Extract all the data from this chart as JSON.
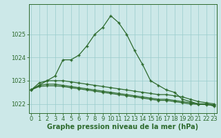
{
  "hours": [
    0,
    1,
    2,
    3,
    4,
    5,
    6,
    7,
    8,
    9,
    10,
    11,
    12,
    13,
    14,
    15,
    16,
    17,
    18,
    19,
    20,
    21,
    22,
    23
  ],
  "line_main": [
    1022.6,
    1022.8,
    1023.0,
    1023.2,
    1023.9,
    1023.9,
    1024.1,
    1024.5,
    1025.0,
    1025.3,
    1025.8,
    1025.5,
    1025.0,
    1024.3,
    1023.7,
    1023.0,
    1022.8,
    1022.6,
    1022.5,
    1022.2,
    1022.1,
    1022.0,
    1022.0,
    1021.9
  ],
  "line_flat1": [
    1022.6,
    1022.9,
    1023.0,
    1023.0,
    1023.0,
    1022.95,
    1022.9,
    1022.85,
    1022.8,
    1022.75,
    1022.7,
    1022.65,
    1022.6,
    1022.55,
    1022.5,
    1022.45,
    1022.4,
    1022.4,
    1022.35,
    1022.3,
    1022.2,
    1022.1,
    1022.05,
    1022.0
  ],
  "line_flat2": [
    1022.6,
    1022.8,
    1022.85,
    1022.85,
    1022.8,
    1022.75,
    1022.7,
    1022.65,
    1022.6,
    1022.55,
    1022.5,
    1022.45,
    1022.4,
    1022.35,
    1022.3,
    1022.25,
    1022.2,
    1022.2,
    1022.15,
    1022.1,
    1022.05,
    1022.0,
    1022.0,
    1021.95
  ],
  "line_flat3": [
    1022.6,
    1022.75,
    1022.78,
    1022.78,
    1022.75,
    1022.7,
    1022.65,
    1022.6,
    1022.55,
    1022.5,
    1022.45,
    1022.4,
    1022.35,
    1022.3,
    1022.25,
    1022.2,
    1022.15,
    1022.15,
    1022.1,
    1022.05,
    1022.0,
    1021.98,
    1021.97,
    1021.93
  ],
  "line_color": "#2d6a2d",
  "bg_color": "#cce8e8",
  "grid_color": "#99cccc",
  "ylabel_ticks": [
    1022,
    1023,
    1024,
    1025
  ],
  "ylim": [
    1021.6,
    1026.3
  ],
  "xlim": [
    -0.3,
    23.3
  ],
  "xlabel": "Graphe pression niveau de la mer (hPa)",
  "xlabel_fontsize": 7,
  "tick_fontsize": 6,
  "marker": "+",
  "markersize": 3.5,
  "linewidth": 0.9
}
